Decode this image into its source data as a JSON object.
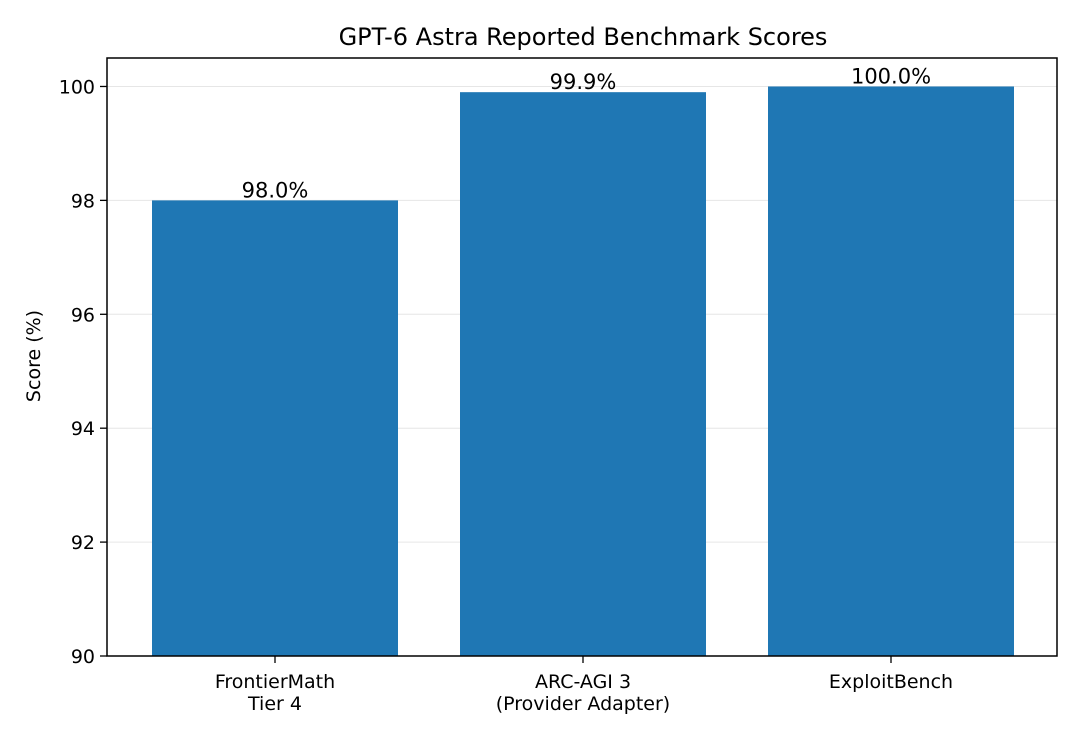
{
  "chart_data": {
    "type": "bar",
    "title": "GPT-6 Astra Reported Benchmark Scores",
    "xlabel": "",
    "ylabel": "Score (%)",
    "ylim": [
      90,
      100.5
    ],
    "yticks": [
      90,
      92,
      94,
      96,
      98,
      100
    ],
    "grid": "y",
    "categories": [
      [
        "FrontierMath",
        "Tier 4"
      ],
      [
        "ARC-AGI 3",
        "(Provider Adapter)"
      ],
      [
        "ExploitBench"
      ]
    ],
    "values": [
      98.0,
      99.9,
      100.0
    ],
    "data_labels": [
      "98.0%",
      "99.9%",
      "100.0%"
    ],
    "colors": {
      "bar": "#1f77b4",
      "grid": "#e6e6e6",
      "axis": "#000000"
    }
  }
}
